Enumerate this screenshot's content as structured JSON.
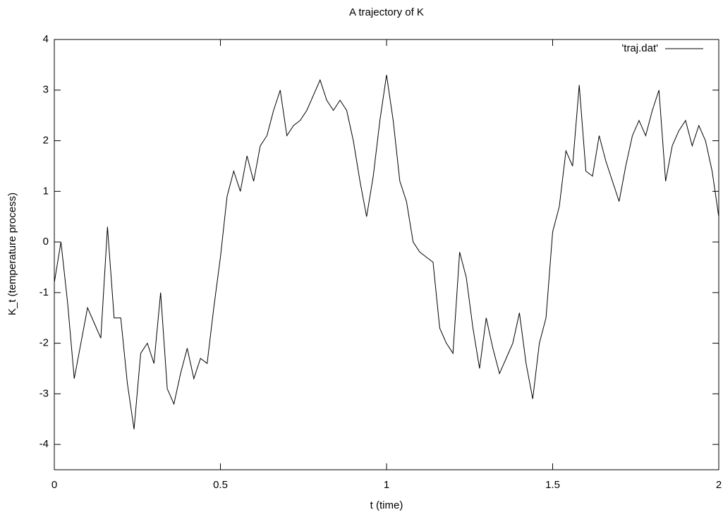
{
  "chart_data": {
    "type": "line",
    "title": "A trajectory of K",
    "x_label": "t (time)",
    "y_label": "K_t (temperature process)",
    "x": [
      0,
      0.02,
      0.04,
      0.06,
      0.08,
      0.1,
      0.12,
      0.14,
      0.16,
      0.18,
      0.2,
      0.22,
      0.24,
      0.26,
      0.28,
      0.3,
      0.32,
      0.34,
      0.36,
      0.38,
      0.4,
      0.42,
      0.44,
      0.46,
      0.48,
      0.5,
      0.52,
      0.54,
      0.56,
      0.58,
      0.6,
      0.62,
      0.64,
      0.66,
      0.68,
      0.7,
      0.72,
      0.74,
      0.76,
      0.78,
      0.8,
      0.82,
      0.84,
      0.86,
      0.88,
      0.9,
      0.92,
      0.94,
      0.96,
      0.98,
      1,
      1.02,
      1.04,
      1.06,
      1.08,
      1.1,
      1.12,
      1.14,
      1.16,
      1.18,
      1.2,
      1.22,
      1.24,
      1.26,
      1.28,
      1.3,
      1.32,
      1.34,
      1.36,
      1.38,
      1.4,
      1.42,
      1.44,
      1.46,
      1.48,
      1.5,
      1.52,
      1.54,
      1.56,
      1.58,
      1.6,
      1.62,
      1.64,
      1.66,
      1.68,
      1.7,
      1.72,
      1.74,
      1.76,
      1.78,
      1.8,
      1.82,
      1.84,
      1.86,
      1.88,
      1.9,
      1.92,
      1.94,
      1.96,
      1.98,
      2
    ],
    "series": [
      {
        "name": "'traj.dat'",
        "color": "#000000",
        "values": [
          -0.8,
          0.0,
          -1.2,
          -2.7,
          -2.0,
          -1.3,
          -1.6,
          -1.9,
          0.3,
          -1.5,
          -1.5,
          -2.8,
          -3.7,
          -2.2,
          -2.0,
          -2.4,
          -1.0,
          -2.9,
          -3.2,
          -2.6,
          -2.1,
          -2.7,
          -2.3,
          -2.4,
          -1.3,
          -0.3,
          0.9,
          1.4,
          1.0,
          1.7,
          1.2,
          1.9,
          2.1,
          2.6,
          3.0,
          2.1,
          2.3,
          2.4,
          2.6,
          2.9,
          3.2,
          2.8,
          2.6,
          2.8,
          2.6,
          2.0,
          1.2,
          0.5,
          1.3,
          2.4,
          3.3,
          2.4,
          1.2,
          0.8,
          0.0,
          -0.2,
          -0.3,
          -0.4,
          -1.7,
          -2.0,
          -2.2,
          -0.2,
          -0.7,
          -1.7,
          -2.5,
          -1.5,
          -2.1,
          -2.6,
          -2.3,
          -2.0,
          -1.4,
          -2.4,
          -3.1,
          -2.0,
          -1.5,
          0.2,
          0.7,
          1.8,
          1.5,
          3.1,
          1.4,
          1.3,
          2.1,
          1.6,
          1.2,
          0.8,
          1.5,
          2.1,
          2.4,
          2.1,
          2.6,
          3.0,
          1.2,
          1.9,
          2.2,
          2.4,
          1.9,
          2.3,
          2.0,
          1.4,
          0.5
        ]
      }
    ],
    "xlim": [
      0,
      2
    ],
    "xticks": [
      0,
      0.5,
      1,
      1.5,
      2
    ],
    "ylim": [
      -4.5,
      4
    ],
    "yticks": [
      -4,
      -3,
      -2,
      -1,
      0,
      1,
      2,
      3,
      4
    ],
    "grid": false,
    "legend": "top-right"
  }
}
